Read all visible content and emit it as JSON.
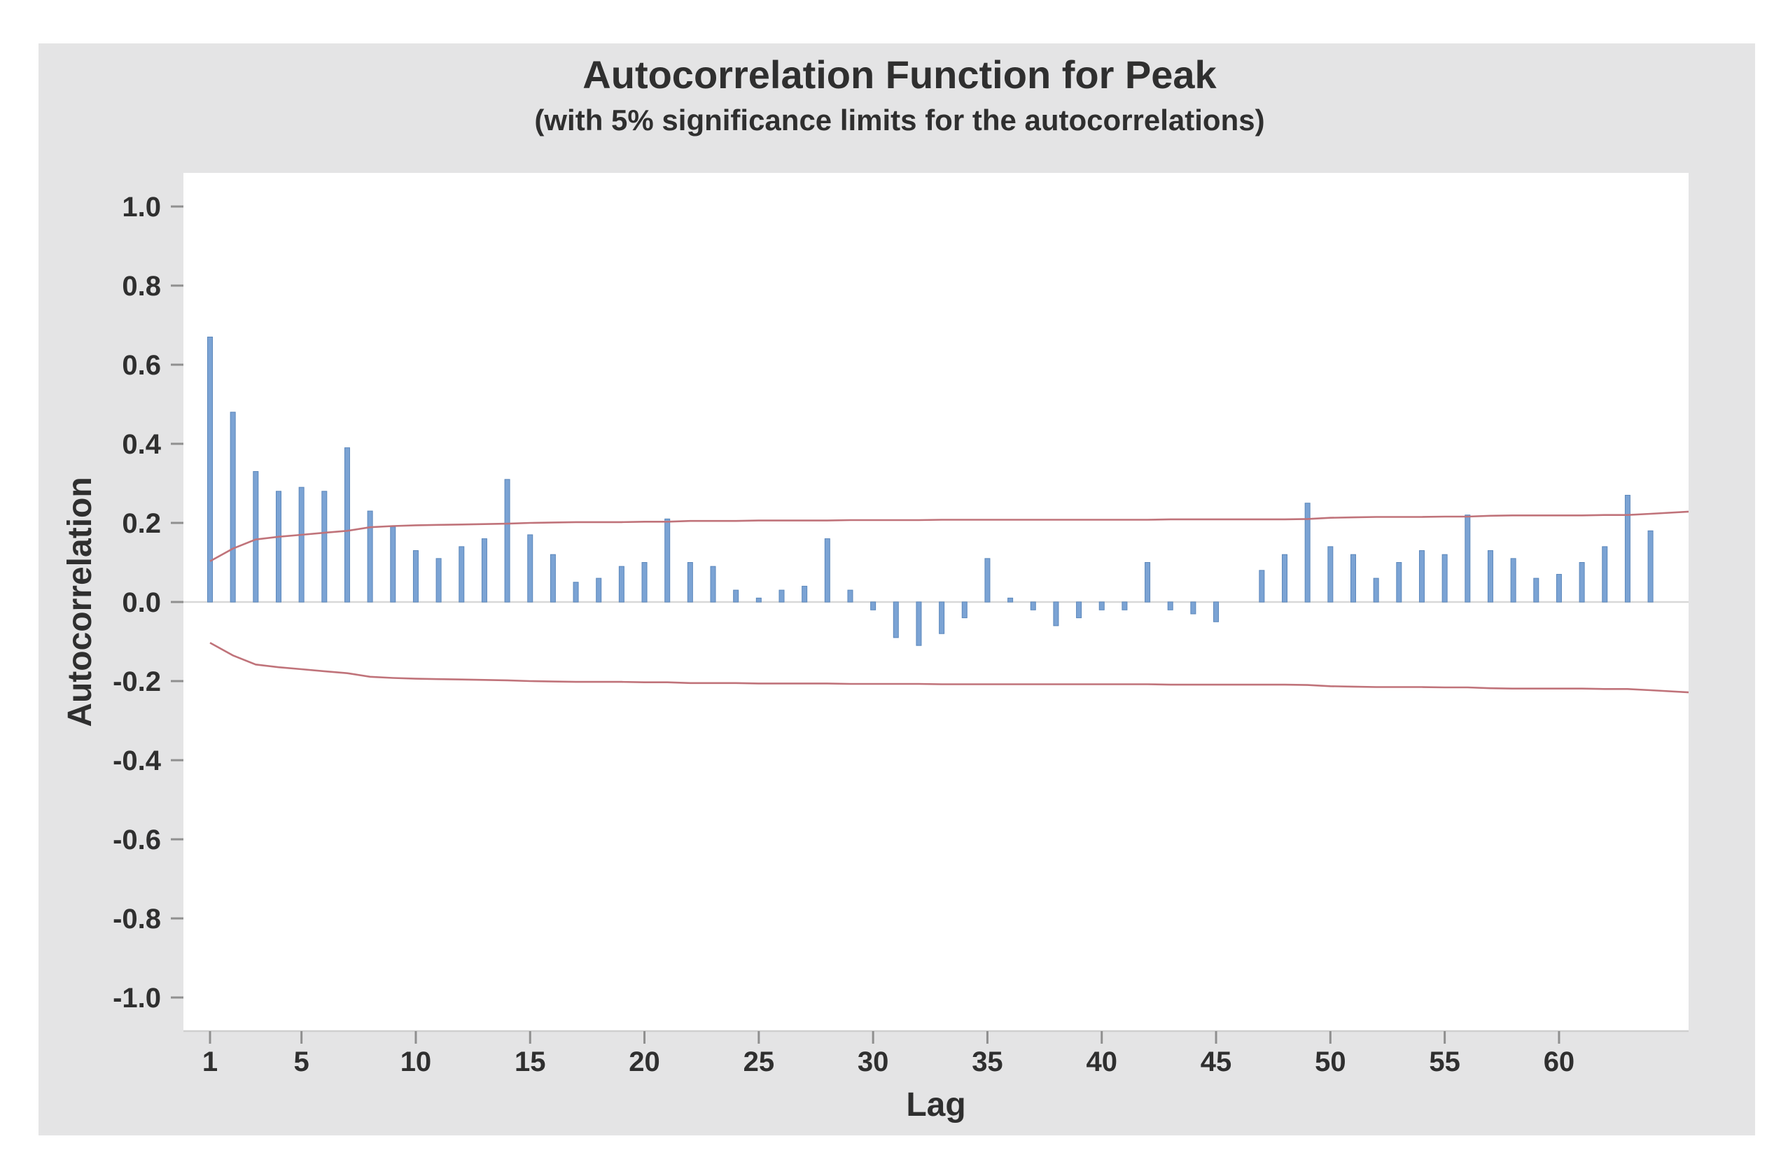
{
  "title": "Autocorrelation Function for Peak",
  "subtitle": "(with 5% significance limits for the autocorrelations)",
  "chart_data": {
    "type": "bar",
    "title": "Autocorrelation Function for Peak",
    "subtitle": "(with 5% significance limits for the autocorrelations)",
    "xlabel": "Lag",
    "ylabel": "Autocorrelation",
    "ylim": [
      -1.0,
      1.0
    ],
    "xlim": [
      0,
      65.5
    ],
    "grid": false,
    "legend_position": "none",
    "y_ticks": [
      1.0,
      0.8,
      0.6,
      0.4,
      0.2,
      0.0,
      -0.2,
      -0.4,
      -0.6,
      -0.8,
      -1.0
    ],
    "x_ticks": [
      1,
      5,
      10,
      15,
      20,
      25,
      30,
      35,
      40,
      45,
      50,
      55,
      60
    ],
    "lags": [
      1,
      2,
      3,
      4,
      5,
      6,
      7,
      8,
      9,
      10,
      11,
      12,
      13,
      14,
      15,
      16,
      17,
      18,
      19,
      20,
      21,
      22,
      23,
      24,
      25,
      26,
      27,
      28,
      29,
      30,
      31,
      32,
      33,
      34,
      35,
      36,
      37,
      38,
      39,
      40,
      41,
      42,
      43,
      44,
      45,
      46,
      47,
      48,
      49,
      50,
      51,
      52,
      53,
      54,
      55,
      56,
      57,
      58,
      59,
      60,
      61,
      62,
      63,
      64
    ],
    "acf": [
      0.67,
      0.48,
      0.33,
      0.28,
      0.29,
      0.28,
      0.39,
      0.23,
      0.19,
      0.13,
      0.11,
      0.14,
      0.16,
      0.31,
      0.17,
      0.12,
      0.05,
      0.06,
      0.09,
      0.1,
      0.21,
      0.1,
      0.09,
      0.03,
      0.01,
      0.03,
      0.04,
      0.16,
      0.03,
      -0.02,
      -0.09,
      -0.11,
      -0.08,
      -0.04,
      0.11,
      0.01,
      -0.02,
      -0.06,
      -0.04,
      -0.02,
      -0.02,
      0.1,
      -0.02,
      -0.03,
      -0.05,
      0.0,
      0.08,
      0.12,
      0.25,
      0.14,
      0.12,
      0.06,
      0.1,
      0.13,
      0.12,
      0.22,
      0.13,
      0.11,
      0.06,
      0.07,
      0.1,
      0.14,
      0.27,
      0.18
    ],
    "significance_upper": [
      0.103,
      0.135,
      0.158,
      0.165,
      0.17,
      0.175,
      0.18,
      0.189,
      0.192,
      0.194,
      0.195,
      0.196,
      0.197,
      0.198,
      0.2,
      0.201,
      0.202,
      0.202,
      0.202,
      0.203,
      0.203,
      0.205,
      0.205,
      0.205,
      0.206,
      0.206,
      0.206,
      0.206,
      0.207,
      0.207,
      0.207,
      0.207,
      0.208,
      0.208,
      0.208,
      0.208,
      0.208,
      0.208,
      0.208,
      0.208,
      0.208,
      0.208,
      0.209,
      0.209,
      0.209,
      0.209,
      0.209,
      0.209,
      0.21,
      0.213,
      0.214,
      0.215,
      0.215,
      0.215,
      0.216,
      0.216,
      0.218,
      0.219,
      0.219,
      0.219,
      0.219,
      0.22,
      0.22,
      0.223
    ],
    "significance_lower": [
      -0.103,
      -0.135,
      -0.158,
      -0.165,
      -0.17,
      -0.175,
      -0.18,
      -0.189,
      -0.192,
      -0.194,
      -0.195,
      -0.196,
      -0.197,
      -0.198,
      -0.2,
      -0.201,
      -0.202,
      -0.202,
      -0.202,
      -0.203,
      -0.203,
      -0.205,
      -0.205,
      -0.205,
      -0.206,
      -0.206,
      -0.206,
      -0.206,
      -0.207,
      -0.207,
      -0.207,
      -0.207,
      -0.208,
      -0.208,
      -0.208,
      -0.208,
      -0.208,
      -0.208,
      -0.208,
      -0.208,
      -0.208,
      -0.208,
      -0.209,
      -0.209,
      -0.209,
      -0.209,
      -0.209,
      -0.209,
      -0.21,
      -0.213,
      -0.214,
      -0.215,
      -0.215,
      -0.215,
      -0.216,
      -0.216,
      -0.218,
      -0.219,
      -0.219,
      -0.219,
      -0.219,
      -0.22,
      -0.22,
      -0.223
    ],
    "colors": {
      "canvas_bg": "#e4e4e5",
      "plot_bg": "#ffffff",
      "bar_fill": "#7ba3d4",
      "bar_edge": "#5b87bb",
      "limit_line": "#c0737a",
      "zero_line": "#d8d8d8",
      "axis_line": "#cfcfcf",
      "tick_mark": "#8f8f8f",
      "text": "#2f2f2f"
    }
  }
}
